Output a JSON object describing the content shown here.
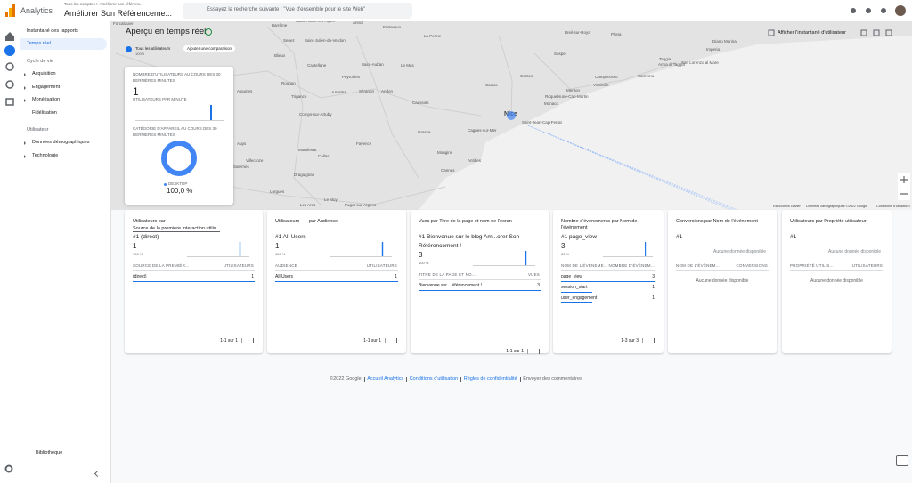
{
  "topbar": {
    "product": "Analytics",
    "breadcrumb": "Tous les comptes > Améliorer son référenc...",
    "property": "Améliorer Son Référenceme...",
    "search_placeholder": "Essayez la recherche suivante : \"Vue d'ensemble pour le site Web\""
  },
  "nav": {
    "items": [
      "Instantané des rapports",
      "Temps réel"
    ],
    "sections": [
      {
        "title": "Cycle de vie",
        "items": [
          "Acquisition",
          "Engagement",
          "Monétisation",
          "Fidélisation"
        ]
      },
      {
        "title": "Utilisateur",
        "items": [
          "Données démographiques",
          "Technologie"
        ]
      }
    ],
    "library": "Bibliothèque"
  },
  "header": {
    "title": "Aperçu en temps réel",
    "chip_all": "Tous les utilisateurs",
    "chip_sub": "100%",
    "add_comparison": "Ajouter une comparaison",
    "snapshot": "Afficher l'instantané d'utilisateur"
  },
  "map": {
    "labels": [
      "Forcalquier",
      "Barrême",
      "Saint-André-les-Alpes",
      "Annot",
      "Entrevaux",
      "La Penne",
      "Senez",
      "Saint-Julien-du-Verdon",
      "Blieux",
      "Castellane",
      "Saint-Auban",
      "Le Mas",
      "Rougon",
      "Peyroules",
      "Aiguines",
      "Trigance",
      "La Martre",
      "Séranon",
      "Andon",
      "Caussols",
      "Comps-sur-Artuby",
      "Carros",
      "Contes",
      "Sospel",
      "Breil-sur-Roya",
      "Pigna",
      "Vintimille",
      "Camporosso",
      "Sanremo",
      "Taggia",
      "Arma di Taggia",
      "San Lorenzo al Mare",
      "Imperia",
      "Diano Marina",
      "Menton",
      "Roquebrune-Cap-Martin",
      "Monaco",
      "Nice",
      "Saint-Jean-Cap-Ferrat",
      "Cagnes-sur-Mer",
      "Grasse",
      "Mougins",
      "Antibes",
      "Cannes",
      "Fayence",
      "Montferrat",
      "Callas",
      "Aups",
      "Villecroze",
      "Salernes",
      "Draguignan",
      "Lorgues",
      "Le Muy",
      "Les Arcs",
      "Puget-sur-Argens"
    ],
    "attribution": [
      "Raccourcis clavier",
      "Données cartographiques ©2022 Google",
      "Conditions d'utilisation"
    ]
  },
  "overlay": {
    "users_title": "NOMBRE D'UTILISATEURS AU COURS DES 30 DERNIÈRES MINUTES",
    "users_value": 1,
    "per_minute_title": "UTILISATEURS PAR MINUTE",
    "per_minute": [
      0,
      0,
      0,
      0,
      0,
      0,
      0,
      0,
      0,
      0,
      0,
      0,
      0,
      0,
      0,
      0,
      0,
      0,
      0,
      0,
      0,
      0,
      0,
      0,
      0,
      1,
      0,
      0,
      0,
      0
    ],
    "device_title": "CATÉGORIE D'APPAREIL AU COURS DES 30 DERNIÈRES MINUTES",
    "device_legend": "DESKTOP",
    "device_value": 100,
    "device_value_label": "100,0 %"
  },
  "cards": [
    {
      "title": "Utilisateurs par",
      "dimension": "Source de la première interaction utilis...",
      "top": "#1  (direct)",
      "top_value": 1,
      "top_pct": "100 %",
      "sparkline": [
        0,
        0,
        0,
        0,
        0,
        0,
        0,
        0,
        0,
        0,
        0,
        0,
        0,
        0,
        0,
        0,
        0,
        0,
        0,
        0,
        0,
        0,
        0,
        0,
        0,
        1,
        0,
        0,
        0,
        0
      ],
      "columns": [
        "SOURCE DE LA PREMIÈR...",
        "UTILISATEURS"
      ],
      "rows": [
        [
          "(direct)",
          1
        ]
      ],
      "pager": "1-1 sur 1"
    },
    {
      "title": "Utilisateurs",
      "dimension": "par Audience",
      "top": "#1  All Users",
      "top_value": 1,
      "top_pct": "100 %",
      "sparkline": [
        0,
        0,
        0,
        0,
        0,
        0,
        0,
        0,
        0,
        0,
        0,
        0,
        0,
        0,
        0,
        0,
        0,
        0,
        0,
        0,
        0,
        0,
        0,
        0,
        0,
        1,
        0,
        0,
        0,
        0
      ],
      "columns": [
        "AUDIENCE",
        "UTILISATEURS"
      ],
      "rows": [
        [
          "All Users",
          1
        ]
      ],
      "pager": "1-1 sur 1"
    },
    {
      "title": "Vues par Titre de la page et nom de l'écran",
      "top": "#1  Bienvenue sur le blog Am...orer Son Référencement !",
      "top_value": 3,
      "top_pct": "100 %",
      "sparkline": [
        0,
        0,
        0,
        0,
        0,
        0,
        0,
        0,
        0,
        0,
        0,
        0,
        0,
        0,
        0,
        0,
        0,
        0,
        0,
        0,
        0,
        0,
        0,
        0,
        0,
        3,
        0,
        0,
        0,
        0
      ],
      "columns": [
        "TITRE DE LA PAGE ET NO...",
        "VUES"
      ],
      "rows": [
        [
          "Bienvenue sur ...éférencement !",
          3
        ]
      ],
      "pager": "1-1 sur 1"
    },
    {
      "title": "Nombre d'événements par Nom de l'événement",
      "top": "#1  page_view",
      "top_value": 3,
      "top_pct": "60 %",
      "sparkline": [
        0,
        0,
        0,
        0,
        0,
        0,
        0,
        0,
        0,
        0,
        0,
        0,
        0,
        0,
        0,
        0,
        0,
        0,
        0,
        0,
        0,
        0,
        0,
        0,
        0,
        3,
        0,
        0,
        0,
        0
      ],
      "columns": [
        "NOM DE L'ÉVÉNEME...",
        "NOMBRE D'ÉVÉNEM..."
      ],
      "rows": [
        [
          "page_view",
          3
        ],
        [
          "session_start",
          1
        ],
        [
          "user_engagement",
          1
        ]
      ],
      "pager": "1-3 sur 3"
    },
    {
      "title": "Conversions par Nom de l'événement",
      "top": "#1  –",
      "empty": "Aucune donnée disponible",
      "columns": [
        "NOM DE L'ÉVÉNEM...",
        "CONVERSIONS"
      ]
    },
    {
      "title": "Utilisateurs par Propriété utilisateur",
      "top": "#1  –",
      "empty": "Aucune donnée disponible",
      "columns": [
        "PROPRIÉTÉ UTILIS...",
        "UTILISATEURS"
      ]
    }
  ],
  "footer": {
    "text": "©2022 Google",
    "links": [
      "Accueil Analytics",
      "Conditions d'utilisation",
      "Règles de confidentialité",
      "Envoyer des commentaires"
    ]
  }
}
